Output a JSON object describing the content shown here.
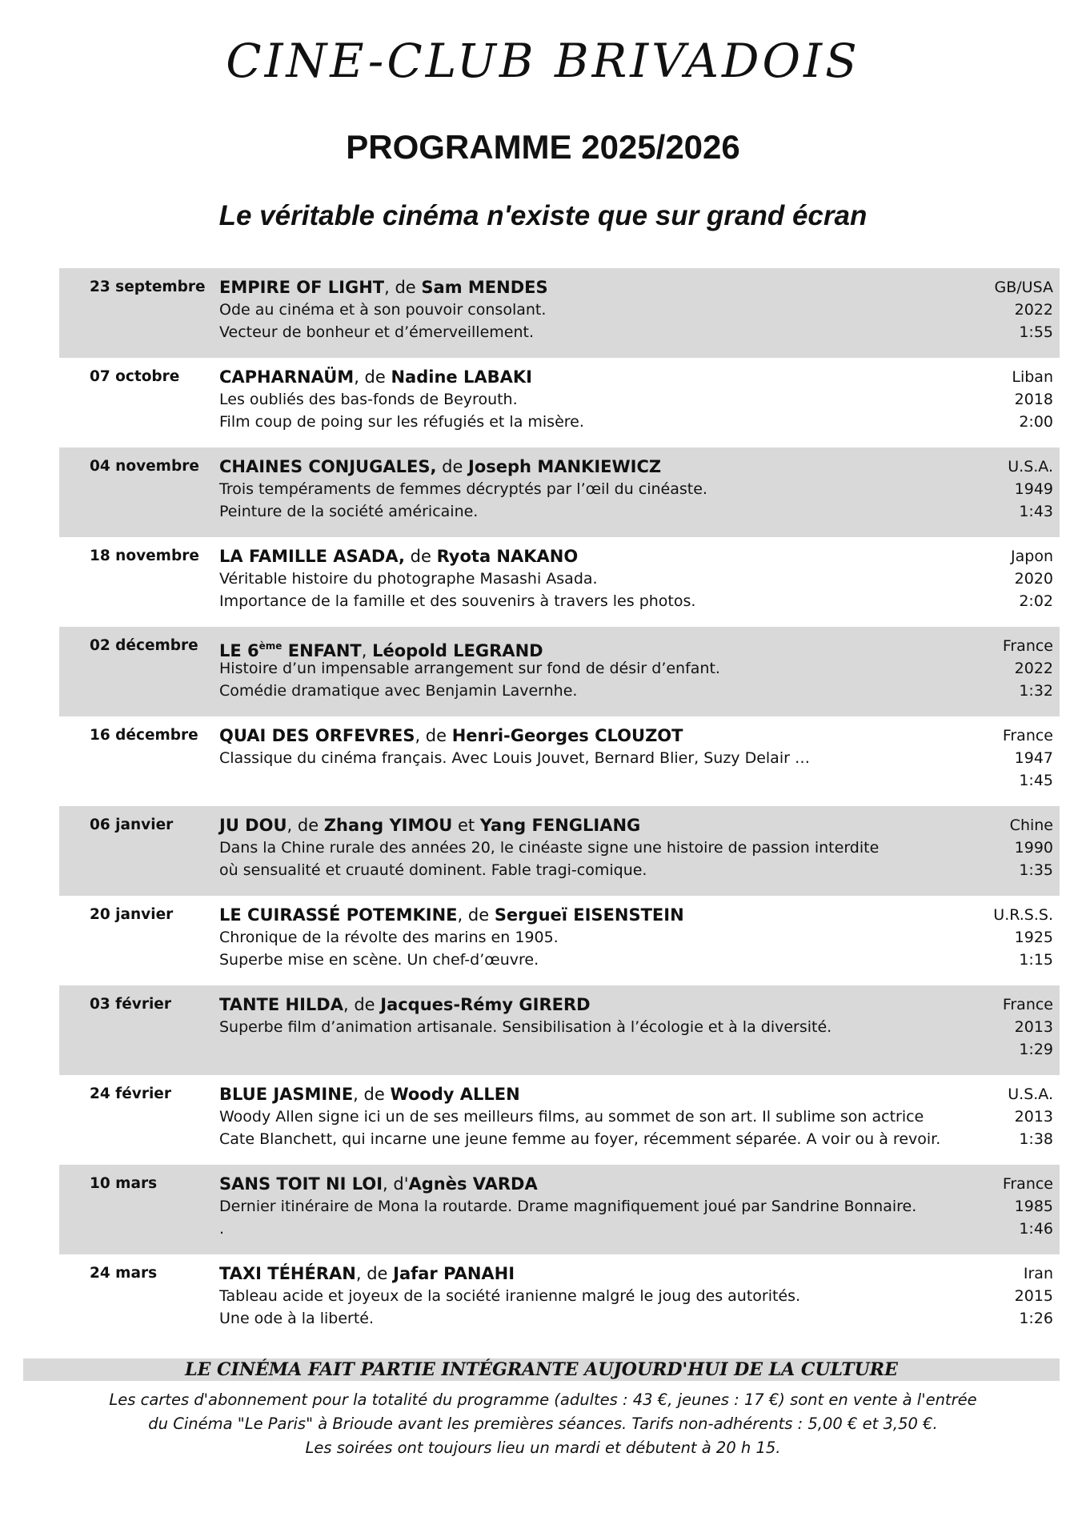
{
  "header": {
    "club": "CINE-CLUB BRIVADOIS",
    "programme": "PROGRAMME 2025/2026",
    "tagline": "Le véritable cinéma n'existe que sur grand écran"
  },
  "entries": [
    {
      "date": "23 septembre",
      "shaded": true,
      "title": [
        {
          "text": "EMPIRE OF LIGHT",
          "style": "bold"
        },
        {
          "text": ", de ",
          "style": "normal"
        },
        {
          "text": "Sam MENDES",
          "style": "bold"
        }
      ],
      "description": [
        "Ode au cinéma et à son pouvoir consolant.",
        "Vecteur de bonheur et d’émerveillement."
      ],
      "country": "GB/USA",
      "year": "2022",
      "duration": "1:55"
    },
    {
      "date": "07 octobre",
      "shaded": false,
      "title": [
        {
          "text": "CAPHARNAÜM",
          "style": "bold"
        },
        {
          "text": ", de ",
          "style": "normal"
        },
        {
          "text": "Nadine LABAKI",
          "style": "bold"
        }
      ],
      "description": [
        "Les oubliés des bas-fonds de Beyrouth.",
        "Film coup de poing sur les réfugiés et la misère."
      ],
      "country": "Liban",
      "year": "2018",
      "duration": "2:00"
    },
    {
      "date": "04 novembre",
      "shaded": true,
      "title": [
        {
          "text": "CHAINES CONJUGALES,",
          "style": "bold"
        },
        {
          "text": " de ",
          "style": "normal"
        },
        {
          "text": "Joseph MANKIEWICZ",
          "style": "bold"
        }
      ],
      "description": [
        "Trois tempéraments de femmes décryptés par l’œil du cinéaste.",
        "Peinture de la société américaine."
      ],
      "country": "U.S.A.",
      "year": "1949",
      "duration": "1:43"
    },
    {
      "date": "18 novembre",
      "shaded": false,
      "title": [
        {
          "text": "LA FAMILLE ASADA,",
          "style": "bold"
        },
        {
          "text": " de ",
          "style": "normal"
        },
        {
          "text": "Ryota NAKANO",
          "style": "bold"
        }
      ],
      "description": [
        "Véritable histoire du photographe Masashi Asada.",
        "Importance de la famille et des souvenirs à travers les photos."
      ],
      "country": "Japon",
      "year": "2020",
      "duration": "2:02"
    },
    {
      "date": "02 décembre",
      "shaded": true,
      "title": [
        {
          "text": "LE 6",
          "style": "bold"
        },
        {
          "text": "ème",
          "style": "sup"
        },
        {
          "text": " ENFANT",
          "style": "bold"
        },
        {
          "text": ", ",
          "style": "normal"
        },
        {
          "text": "Léopold LEGRAND",
          "style": "bold"
        }
      ],
      "description": [
        "Histoire d’un impensable arrangement sur fond de désir d’enfant.",
        "Comédie dramatique avec Benjamin Lavernhe."
      ],
      "country": "France",
      "year": "2022",
      "duration": "1:32"
    },
    {
      "date": "16 décembre",
      "shaded": false,
      "title": [
        {
          "text": "QUAI DES ORFEVRES",
          "style": "bold"
        },
        {
          "text": ", de ",
          "style": "normal"
        },
        {
          "text": "Henri-Georges CLOUZOT",
          "style": "bold"
        }
      ],
      "description": [
        "Classique du cinéma français. Avec Louis Jouvet, Bernard Blier, Suzy Delair …"
      ],
      "country": "France",
      "year": "1947",
      "duration": "1:45"
    },
    {
      "date": "06 janvier",
      "shaded": true,
      "title": [
        {
          "text": "JU DOU",
          "style": "bold"
        },
        {
          "text": ", de ",
          "style": "normal"
        },
        {
          "text": "Zhang YIMOU",
          "style": "bold"
        },
        {
          "text": " et ",
          "style": "normal"
        },
        {
          "text": "Yang FENGLIANG",
          "style": "bold"
        }
      ],
      "description": [
        "Dans la Chine rurale des années 20, le cinéaste signe une histoire de passion interdite",
        "où sensualité et cruauté dominent. Fable tragi-comique."
      ],
      "country": "Chine",
      "year": "1990",
      "duration": "1:35"
    },
    {
      "date": "20 janvier",
      "shaded": false,
      "title": [
        {
          "text": "LE CUIRASSÉ POTEMKINE",
          "style": "bold"
        },
        {
          "text": ", de ",
          "style": "normal"
        },
        {
          "text": "Sergueï EISENSTEIN",
          "style": "bold"
        }
      ],
      "description": [
        "Chronique de la révolte des marins en 1905.",
        "Superbe mise en scène. Un chef-d’œuvre."
      ],
      "country": "U.R.S.S.",
      "year": "1925",
      "duration": "1:15"
    },
    {
      "date": "03 février",
      "shaded": true,
      "title": [
        {
          "text": "TANTE HILDA",
          "style": "bold"
        },
        {
          "text": ", de ",
          "style": "normal"
        },
        {
          "text": "Jacques-Rémy GIRERD",
          "style": "bold"
        }
      ],
      "description": [
        "Superbe film d’animation artisanale. Sensibilisation à l’écologie et à la diversité."
      ],
      "country": "France",
      "year": "2013",
      "duration": "1:29"
    },
    {
      "date": "24 février",
      "shaded": false,
      "title": [
        {
          "text": "BLUE JASMINE",
          "style": "bold"
        },
        {
          "text": ", de ",
          "style": "normal"
        },
        {
          "text": "Woody ALLEN",
          "style": "bold"
        }
      ],
      "description": [
        "Woody Allen signe ici un de ses meilleurs films, au sommet de son art. Il sublime son actrice",
        "Cate Blanchett, qui incarne une jeune femme au foyer, récemment séparée. A voir ou à revoir."
      ],
      "country": "U.S.A.",
      "year": "2013",
      "duration": "1:38"
    },
    {
      "date": "10 mars",
      "shaded": true,
      "title": [
        {
          "text": "SANS TOIT NI LOI",
          "style": "bold"
        },
        {
          "text": ", d'",
          "style": "normal"
        },
        {
          "text": "Agnès VARDA",
          "style": "bold"
        }
      ],
      "description": [
        "Dernier itinéraire de Mona la routarde. Drame magnifiquement joué par Sandrine Bonnaire.",
        "."
      ],
      "country": "France",
      "year": "1985",
      "duration": "1:46"
    },
    {
      "date": "24 mars",
      "shaded": false,
      "title": [
        {
          "text": "TAXI TÉHÉRAN",
          "style": "bold"
        },
        {
          "text": ", de ",
          "style": "normal"
        },
        {
          "text": "Jafar PANAHI",
          "style": "bold"
        }
      ],
      "description": [
        "Tableau acide et joyeux de la société iranienne malgré le joug des autorités.",
        "Une ode à la liberté."
      ],
      "country": "Iran",
      "year": "2015",
      "duration": "1:26"
    }
  ],
  "footer": {
    "banner": "LE CINÉMA FAIT PARTIE INTÉGRANTE AUJOURD'HUI DE LA CULTURE",
    "notes": [
      "Les cartes d'abonnement pour la totalité du programme (adultes : 43 €, jeunes : 17 €) sont en vente à l'entrée",
      "du Cinéma \"Le Paris\" à Brioude avant les premières séances. Tarifs non-adhérents : 5,00 € et 3,50 €.",
      "Les soirées ont toujours lieu un mardi et débutent à 20 h 15."
    ]
  }
}
